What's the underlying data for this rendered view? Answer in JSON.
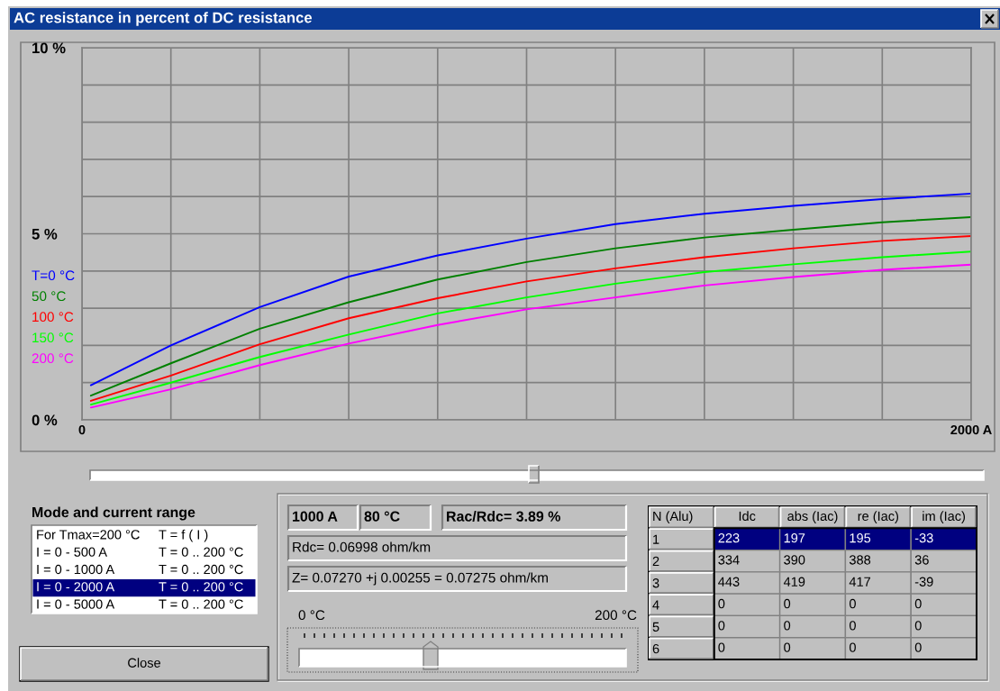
{
  "chart_data": [
    {
      "type": "line",
      "title": "AC resistance in percent of DC resistance",
      "x": [
        20,
        200,
        400,
        600,
        800,
        1000,
        1200,
        1400,
        1600,
        1800,
        2000
      ],
      "xlim": [
        0,
        2000
      ],
      "ylim": [
        0,
        10
      ],
      "xticks": [
        0,
        {
          "value": 200,
          "label": null
        },
        {
          "value": 400,
          "label": null
        },
        {
          "value": 600,
          "label": null
        },
        {
          "value": 800,
          "label": null
        },
        {
          "value": 1000,
          "label": null
        },
        {
          "value": 1200,
          "label": null
        },
        {
          "value": 1400,
          "label": null
        },
        {
          "value": 1600,
          "label": null
        },
        {
          "value": 1800,
          "label": null
        },
        {
          "value": 2000,
          "label": "2000 A"
        }
      ],
      "yticks": [
        {
          "value": 0,
          "label": "0 %"
        },
        {
          "value": 1,
          "label": null
        },
        {
          "value": 2,
          "label": null
        },
        {
          "value": 3,
          "label": null
        },
        {
          "value": 4,
          "label": null
        },
        {
          "value": 5,
          "label": "5 %"
        },
        {
          "value": 6,
          "label": null
        },
        {
          "value": 7,
          "label": null
        },
        {
          "value": 8,
          "label": null
        },
        {
          "value": 9,
          "label": null
        },
        {
          "value": 10,
          "label": "10 %"
        }
      ],
      "grid": true,
      "legend": "left",
      "line_style": "solid",
      "series": [
        {
          "name": "T=0 °C",
          "color": "#0000ff",
          "values": [
            0.93,
            2.0,
            3.03,
            3.85,
            4.42,
            4.87,
            5.26,
            5.54,
            5.75,
            5.93,
            6.08
          ]
        },
        {
          "name": "50 °C",
          "color": "#008000",
          "values": [
            0.65,
            1.52,
            2.45,
            3.16,
            3.77,
            4.24,
            4.61,
            4.9,
            5.11,
            5.31,
            5.45
          ]
        },
        {
          "name": "100 °C",
          "color": "#ff0000",
          "values": [
            0.51,
            1.19,
            2.03,
            2.73,
            3.27,
            3.72,
            4.07,
            4.37,
            4.61,
            4.81,
            4.94
          ]
        },
        {
          "name": "150 °C",
          "color": "#00ff00",
          "values": [
            0.41,
            1.0,
            1.69,
            2.29,
            2.86,
            3.29,
            3.66,
            3.97,
            4.18,
            4.37,
            4.52
          ]
        },
        {
          "name": "200 °C",
          "color": "#ff00ff",
          "values": [
            0.33,
            0.82,
            1.47,
            2.05,
            2.55,
            2.97,
            3.29,
            3.61,
            3.84,
            4.03,
            4.17
          ]
        }
      ]
    },
    {
      "type": "other",
      "title": "Mode and current range",
      "annotations": [
        "For Tmax=200 °C",
        "T = f ( I )",
        "I = 0 - 500 A",
        "T = 0 .. 200 °C",
        "I = 0 - 1000 A",
        "T = 0 .. 200 °C",
        "I = 0 - 2000 A",
        "T = 0 .. 200 °C",
        "I = 0 - 5000 A",
        "T = 0 .. 200 °C",
        "Close"
      ],
      "colors": [
        "#ffffff",
        "#ffffff",
        "#ffffff",
        "#000080",
        "#ffffff"
      ]
    },
    {
      "type": "other",
      "annotations": [
        "1000 A",
        "80 °C",
        "Rac/Rdc= 3.89 %",
        "Rdc= 0.06998 ohm/km",
        "Z= 0.07270 +j 0.00255 = 0.07275 ohm/km",
        "0 °C",
        "200 °C"
      ]
    },
    {
      "type": "heatmap",
      "ylabel": "N (Alu)",
      "categories": [
        "Idc",
        "abs (Iac)",
        "re (Iac)",
        "im (Iac)"
      ],
      "y_categories": [
        "1",
        "2",
        "3",
        "4",
        "5",
        "6"
      ],
      "cells": [
        [
          223,
          197,
          195,
          -33
        ],
        [
          334,
          390,
          388,
          36
        ],
        [
          443,
          419,
          417,
          -39
        ],
        [
          0,
          0,
          0,
          0
        ],
        [
          0,
          0,
          0,
          0
        ],
        [
          0,
          0,
          0,
          0
        ]
      ],
      "data_labels": true,
      "colors": [
        "#000080",
        "#c0c0c0",
        "#c0c0c0",
        "#c0c0c0",
        "#c0c0c0",
        "#c0c0c0"
      ]
    }
  ]
}
